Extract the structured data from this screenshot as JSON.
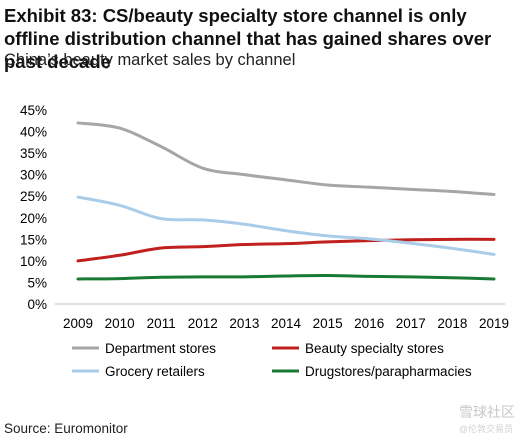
{
  "header": {
    "title": "Exhibit 83: CS/beauty specialty store channel is only offline distribution channel that has gained shares over past decade",
    "subtitle": "China’s beauty market sales by channel"
  },
  "footer": {
    "source": "Source: Euromonitor",
    "watermark": "雪球社区",
    "watermark_sub": "@伦敦交易员"
  },
  "chart_data": {
    "type": "line",
    "title": "China’s beauty market sales by channel",
    "xlabel": "",
    "ylabel": "",
    "x": [
      "2009",
      "2010",
      "2011",
      "2012",
      "2013",
      "2014",
      "2015",
      "2016",
      "2017",
      "2018",
      "2019"
    ],
    "ylim": [
      0,
      45
    ],
    "yticks": [
      "0%",
      "5%",
      "10%",
      "15%",
      "20%",
      "25%",
      "30%",
      "35%",
      "40%",
      "45%"
    ],
    "grid": false,
    "legend_position": "bottom",
    "series": [
      {
        "name": "Department stores",
        "color": "#a6a6a6",
        "values": [
          42.0,
          40.8,
          36.5,
          31.5,
          30.0,
          28.8,
          27.6,
          27.1,
          26.6,
          26.1,
          25.4
        ]
      },
      {
        "name": "Beauty specialty stores",
        "color": "#c0201e",
        "values": [
          10.0,
          11.3,
          13.0,
          13.3,
          13.8,
          14.0,
          14.4,
          14.7,
          14.9,
          15.0,
          15.0
        ]
      },
      {
        "name": "Grocery retailers",
        "color": "#a9cce9",
        "values": [
          24.8,
          22.9,
          19.8,
          19.5,
          18.5,
          17.0,
          15.8,
          15.1,
          14.1,
          12.9,
          11.5
        ]
      },
      {
        "name": "Drugstores/parapharmacies",
        "color": "#1a7a35",
        "values": [
          5.8,
          5.9,
          6.2,
          6.3,
          6.3,
          6.5,
          6.6,
          6.4,
          6.3,
          6.1,
          5.8
        ]
      }
    ]
  }
}
